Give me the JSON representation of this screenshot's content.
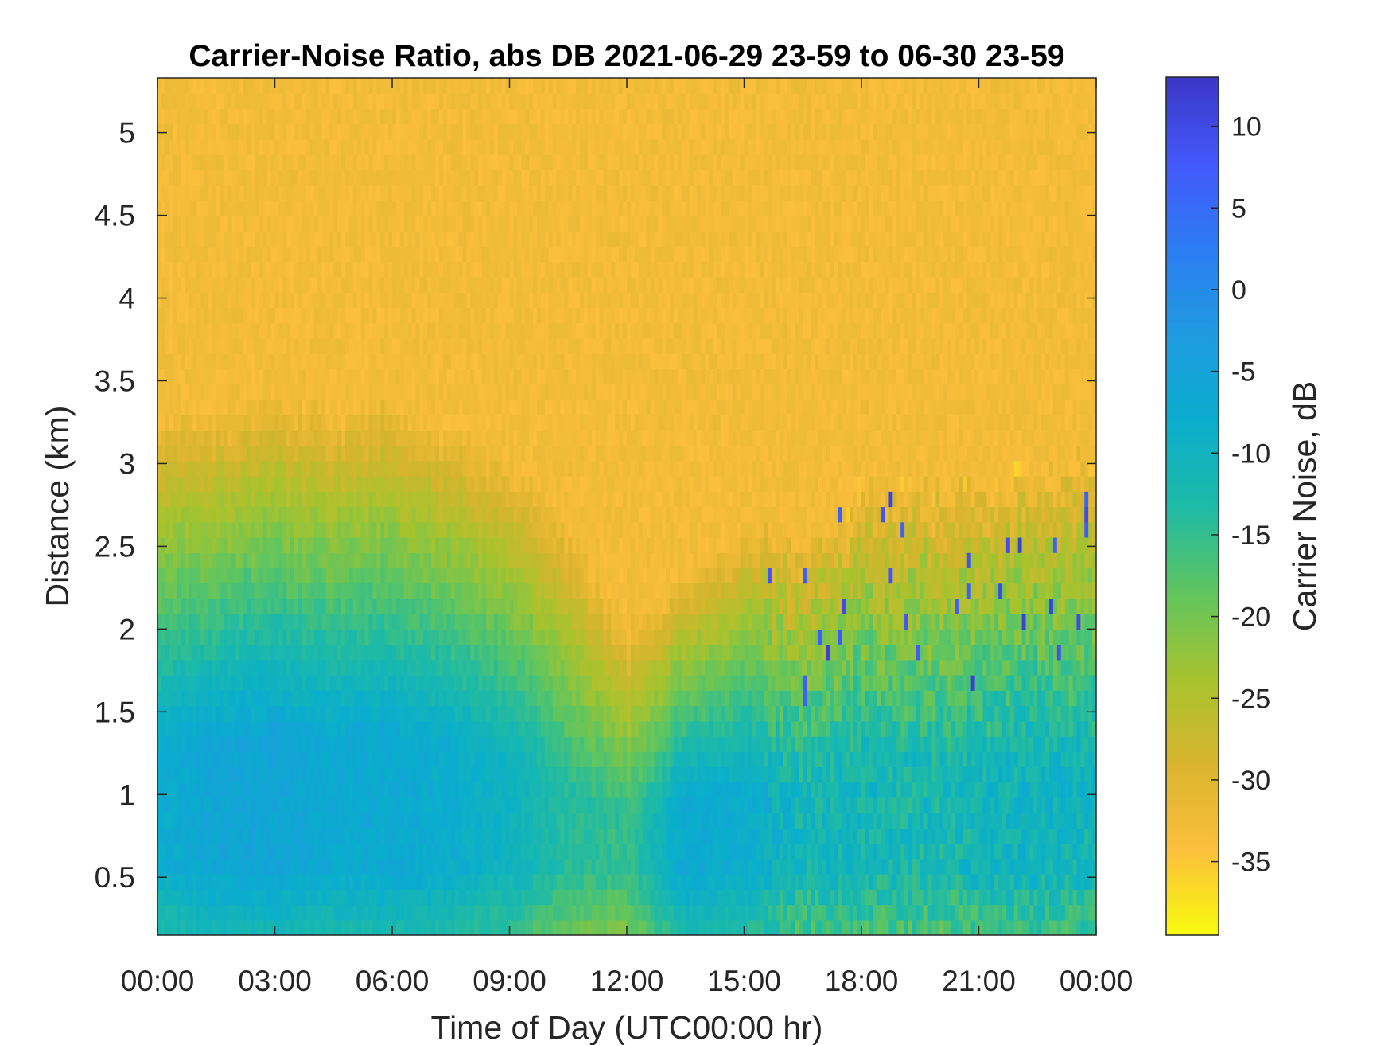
{
  "chart_data": {
    "type": "heatmap",
    "title": "Carrier-Noise Ratio, abs DB 2021-06-29 23-59 to 06-30 23-59",
    "xlabel": "Time of Day (UTC00:00 hr)",
    "ylabel": "Distance (km)",
    "colorbar_label": "Carrier Noise, dB",
    "x_ticks": [
      "00:00",
      "03:00",
      "06:00",
      "09:00",
      "12:00",
      "15:00",
      "18:00",
      "21:00",
      "00:00"
    ],
    "x_tick_hours": [
      0,
      3,
      6,
      9,
      12,
      15,
      18,
      21,
      24
    ],
    "xlim_hours": [
      0,
      24
    ],
    "y_ticks": [
      "0.5",
      "1",
      "1.5",
      "2",
      "2.5",
      "3",
      "3.5",
      "4",
      "4.5",
      "5"
    ],
    "y_tick_values": [
      0.5,
      1,
      1.5,
      2,
      2.5,
      3,
      3.5,
      4,
      4.5,
      5
    ],
    "ylim": [
      0.15,
      5.33
    ],
    "colorbar_ticks": [
      "10",
      "5",
      "0",
      "-5",
      "-10",
      "-15",
      "-20",
      "-25",
      "-30",
      "-35"
    ],
    "colorbar_tick_values": [
      10,
      5,
      0,
      -5,
      -10,
      -15,
      -20,
      -25,
      -30,
      -35
    ],
    "clim": [
      -39.5,
      13
    ],
    "colormap": "parula",
    "colormap_stops": [
      "#f9fb0e",
      "#fbbf3c",
      "#d9b42e",
      "#a6c32e",
      "#5fc55f",
      "#1dbaa7",
      "#0aadcd",
      "#1e9be0",
      "#2c7cf2",
      "#4358fb",
      "#3a38c6"
    ],
    "field_summary": {
      "description_levels_db": "approximate carrier-noise (dB) by time-of-day (hours) and distance (km)",
      "time_hours": [
        0,
        1.5,
        3,
        4.5,
        6,
        7.5,
        9,
        10.5,
        12,
        13.5,
        15,
        16.5,
        18,
        19.5,
        21,
        22.5,
        24
      ],
      "signal_top_km": [
        3.3,
        3.3,
        3.4,
        3.3,
        3.4,
        3.2,
        3.0,
        2.6,
        2.0,
        2.3,
        2.6,
        2.5,
        2.9,
        2.9,
        2.9,
        3.0,
        3.0
      ],
      "low_level_db": [
        -8,
        -6,
        -6,
        -7,
        -7,
        -8,
        -10,
        -14,
        -15,
        -7,
        -8,
        -11,
        -11,
        -12,
        -11,
        -10,
        -11
      ],
      "background_db": -33
    }
  }
}
